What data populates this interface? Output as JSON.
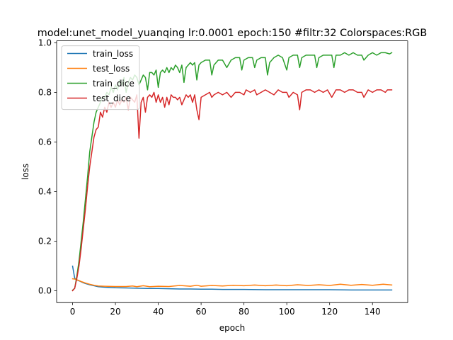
{
  "chart_data": {
    "type": "line",
    "title": "model:unet_model_yuanqing lr:0.0001 epoch:150 #filtr:32 Colorspaces:RGB",
    "xlabel": "epoch",
    "ylabel": "loss",
    "xlim": [
      -7.45,
      156.45
    ],
    "ylim": [
      -0.048,
      1.008
    ],
    "xticks": [
      0,
      20,
      40,
      60,
      80,
      100,
      120,
      140
    ],
    "yticks": [
      0.0,
      0.2,
      0.4,
      0.6,
      0.8,
      1.0
    ],
    "xtick_labels": [
      "0",
      "20",
      "40",
      "60",
      "80",
      "100",
      "120",
      "140"
    ],
    "ytick_labels": [
      "0.0",
      "0.2",
      "0.4",
      "0.6",
      "0.8",
      "1.0"
    ],
    "grid": false,
    "legend_position": "upper-left",
    "series": [
      {
        "name": "train_loss",
        "color": "#1f77b4",
        "points": [
          [
            0,
            0.099
          ],
          [
            1,
            0.05
          ],
          [
            2,
            0.043
          ],
          [
            3,
            0.04
          ],
          [
            4,
            0.036
          ],
          [
            5,
            0.032
          ],
          [
            6,
            0.029
          ],
          [
            8,
            0.024
          ],
          [
            10,
            0.02
          ],
          [
            12,
            0.016
          ],
          [
            15,
            0.014
          ],
          [
            20,
            0.012
          ],
          [
            25,
            0.011
          ],
          [
            30,
            0.01
          ],
          [
            35,
            0.009
          ],
          [
            40,
            0.009
          ],
          [
            45,
            0.008
          ],
          [
            50,
            0.007
          ],
          [
            55,
            0.007
          ],
          [
            60,
            0.006
          ],
          [
            65,
            0.006
          ],
          [
            70,
            0.005
          ],
          [
            80,
            0.005
          ],
          [
            90,
            0.004
          ],
          [
            100,
            0.004
          ],
          [
            110,
            0.004
          ],
          [
            120,
            0.004
          ],
          [
            130,
            0.003
          ],
          [
            140,
            0.003
          ],
          [
            149,
            0.003
          ]
        ]
      },
      {
        "name": "test_loss",
        "color": "#ff7f0e",
        "points": [
          [
            0,
            0.048
          ],
          [
            1,
            0.047
          ],
          [
            2,
            0.044
          ],
          [
            3,
            0.041
          ],
          [
            4,
            0.037
          ],
          [
            5,
            0.034
          ],
          [
            6,
            0.031
          ],
          [
            8,
            0.026
          ],
          [
            10,
            0.022
          ],
          [
            12,
            0.019
          ],
          [
            15,
            0.018
          ],
          [
            20,
            0.017
          ],
          [
            25,
            0.017
          ],
          [
            28,
            0.019
          ],
          [
            30,
            0.016
          ],
          [
            33,
            0.02
          ],
          [
            36,
            0.016
          ],
          [
            40,
            0.018
          ],
          [
            45,
            0.017
          ],
          [
            50,
            0.021
          ],
          [
            55,
            0.018
          ],
          [
            58,
            0.022
          ],
          [
            60,
            0.018
          ],
          [
            65,
            0.021
          ],
          [
            70,
            0.019
          ],
          [
            75,
            0.022
          ],
          [
            80,
            0.02
          ],
          [
            85,
            0.023
          ],
          [
            90,
            0.02
          ],
          [
            95,
            0.023
          ],
          [
            100,
            0.02
          ],
          [
            105,
            0.024
          ],
          [
            110,
            0.021
          ],
          [
            115,
            0.024
          ],
          [
            120,
            0.021
          ],
          [
            125,
            0.026
          ],
          [
            130,
            0.022
          ],
          [
            135,
            0.025
          ],
          [
            140,
            0.022
          ],
          [
            145,
            0.026
          ],
          [
            149,
            0.023
          ]
        ]
      },
      {
        "name": "train_dice",
        "color": "#2ca02c",
        "points": [
          [
            0,
            0.002
          ],
          [
            1,
            0.01
          ],
          [
            2,
            0.06
          ],
          [
            3,
            0.12
          ],
          [
            4,
            0.2
          ],
          [
            5,
            0.28
          ],
          [
            6,
            0.37
          ],
          [
            7,
            0.46
          ],
          [
            8,
            0.56
          ],
          [
            9,
            0.62
          ],
          [
            10,
            0.68
          ],
          [
            11,
            0.72
          ],
          [
            12,
            0.74
          ],
          [
            13,
            0.76
          ],
          [
            14,
            0.78
          ],
          [
            15,
            0.78
          ],
          [
            16,
            0.8
          ],
          [
            17,
            0.79
          ],
          [
            18,
            0.82
          ],
          [
            19,
            0.8
          ],
          [
            20,
            0.83
          ],
          [
            21,
            0.81
          ],
          [
            22,
            0.85
          ],
          [
            23,
            0.83
          ],
          [
            24,
            0.86
          ],
          [
            25,
            0.8
          ],
          [
            26,
            0.84
          ],
          [
            27,
            0.86
          ],
          [
            28,
            0.85
          ],
          [
            29,
            0.87
          ],
          [
            30,
            0.86
          ],
          [
            31,
            0.83
          ],
          [
            32,
            0.85
          ],
          [
            33,
            0.87
          ],
          [
            34,
            0.86
          ],
          [
            35,
            0.81
          ],
          [
            36,
            0.88
          ],
          [
            37,
            0.88
          ],
          [
            38,
            0.87
          ],
          [
            39,
            0.89
          ],
          [
            40,
            0.82
          ],
          [
            41,
            0.88
          ],
          [
            42,
            0.89
          ],
          [
            43,
            0.88
          ],
          [
            44,
            0.9
          ],
          [
            45,
            0.88
          ],
          [
            46,
            0.9
          ],
          [
            47,
            0.89
          ],
          [
            48,
            0.91
          ],
          [
            49,
            0.9
          ],
          [
            50,
            0.88
          ],
          [
            51,
            0.91
          ],
          [
            52,
            0.84
          ],
          [
            53,
            0.9
          ],
          [
            54,
            0.91
          ],
          [
            55,
            0.92
          ],
          [
            56,
            0.91
          ],
          [
            57,
            0.92
          ],
          [
            58,
            0.85
          ],
          [
            59,
            0.91
          ],
          [
            60,
            0.92
          ],
          [
            62,
            0.93
          ],
          [
            64,
            0.93
          ],
          [
            65,
            0.87
          ],
          [
            66,
            0.91
          ],
          [
            68,
            0.93
          ],
          [
            70,
            0.93
          ],
          [
            72,
            0.9
          ],
          [
            74,
            0.93
          ],
          [
            76,
            0.94
          ],
          [
            78,
            0.94
          ],
          [
            79,
            0.89
          ],
          [
            80,
            0.93
          ],
          [
            82,
            0.94
          ],
          [
            84,
            0.94
          ],
          [
            85,
            0.9
          ],
          [
            86,
            0.93
          ],
          [
            88,
            0.94
          ],
          [
            90,
            0.94
          ],
          [
            91,
            0.87
          ],
          [
            92,
            0.92
          ],
          [
            94,
            0.94
          ],
          [
            96,
            0.95
          ],
          [
            98,
            0.94
          ],
          [
            100,
            0.89
          ],
          [
            101,
            0.94
          ],
          [
            103,
            0.95
          ],
          [
            105,
            0.95
          ],
          [
            106,
            0.9
          ],
          [
            107,
            0.94
          ],
          [
            109,
            0.95
          ],
          [
            111,
            0.95
          ],
          [
            113,
            0.95
          ],
          [
            114,
            0.9
          ],
          [
            115,
            0.94
          ],
          [
            117,
            0.95
          ],
          [
            119,
            0.95
          ],
          [
            121,
            0.95
          ],
          [
            122,
            0.9
          ],
          [
            123,
            0.95
          ],
          [
            125,
            0.95
          ],
          [
            127,
            0.96
          ],
          [
            129,
            0.95
          ],
          [
            131,
            0.96
          ],
          [
            133,
            0.95
          ],
          [
            135,
            0.95
          ],
          [
            136,
            0.93
          ],
          [
            138,
            0.95
          ],
          [
            140,
            0.96
          ],
          [
            142,
            0.95
          ],
          [
            144,
            0.96
          ],
          [
            146,
            0.96
          ],
          [
            148,
            0.955
          ],
          [
            149,
            0.96
          ]
        ]
      },
      {
        "name": "test_dice",
        "color": "#d62728",
        "points": [
          [
            0,
            0.0
          ],
          [
            1,
            0.01
          ],
          [
            2,
            0.05
          ],
          [
            3,
            0.1
          ],
          [
            4,
            0.17
          ],
          [
            5,
            0.25
          ],
          [
            6,
            0.33
          ],
          [
            7,
            0.42
          ],
          [
            8,
            0.5
          ],
          [
            9,
            0.56
          ],
          [
            10,
            0.62
          ],
          [
            11,
            0.65
          ],
          [
            12,
            0.66
          ],
          [
            13,
            0.72
          ],
          [
            14,
            0.7
          ],
          [
            15,
            0.74
          ],
          [
            16,
            0.72
          ],
          [
            17,
            0.76
          ],
          [
            18,
            0.74
          ],
          [
            19,
            0.76
          ],
          [
            20,
            0.74
          ],
          [
            21,
            0.77
          ],
          [
            22,
            0.75
          ],
          [
            23,
            0.77
          ],
          [
            24,
            0.76
          ],
          [
            25,
            0.78
          ],
          [
            26,
            0.73
          ],
          [
            27,
            0.78
          ],
          [
            28,
            0.77
          ],
          [
            29,
            0.76
          ],
          [
            30,
            0.79
          ],
          [
            31,
            0.615
          ],
          [
            32,
            0.76
          ],
          [
            33,
            0.78
          ],
          [
            34,
            0.72
          ],
          [
            35,
            0.78
          ],
          [
            36,
            0.79
          ],
          [
            37,
            0.78
          ],
          [
            38,
            0.8
          ],
          [
            39,
            0.76
          ],
          [
            40,
            0.79
          ],
          [
            41,
            0.76
          ],
          [
            42,
            0.78
          ],
          [
            43,
            0.74
          ],
          [
            44,
            0.78
          ],
          [
            45,
            0.75
          ],
          [
            46,
            0.79
          ],
          [
            47,
            0.78
          ],
          [
            48,
            0.78
          ],
          [
            49,
            0.77
          ],
          [
            50,
            0.78
          ],
          [
            51,
            0.75
          ],
          [
            52,
            0.77
          ],
          [
            53,
            0.79
          ],
          [
            54,
            0.78
          ],
          [
            55,
            0.79
          ],
          [
            56,
            0.76
          ],
          [
            57,
            0.79
          ],
          [
            58,
            0.73
          ],
          [
            59,
            0.69
          ],
          [
            60,
            0.78
          ],
          [
            62,
            0.79
          ],
          [
            64,
            0.8
          ],
          [
            65,
            0.78
          ],
          [
            66,
            0.79
          ],
          [
            68,
            0.8
          ],
          [
            70,
            0.79
          ],
          [
            72,
            0.8
          ],
          [
            74,
            0.78
          ],
          [
            76,
            0.8
          ],
          [
            78,
            0.8
          ],
          [
            80,
            0.79
          ],
          [
            81,
            0.81
          ],
          [
            83,
            0.8
          ],
          [
            85,
            0.81
          ],
          [
            86,
            0.79
          ],
          [
            88,
            0.8
          ],
          [
            90,
            0.81
          ],
          [
            92,
            0.8
          ],
          [
            94,
            0.79
          ],
          [
            96,
            0.81
          ],
          [
            98,
            0.8
          ],
          [
            100,
            0.8
          ],
          [
            101,
            0.78
          ],
          [
            103,
            0.8
          ],
          [
            105,
            0.79
          ],
          [
            106,
            0.73
          ],
          [
            107,
            0.8
          ],
          [
            109,
            0.81
          ],
          [
            111,
            0.81
          ],
          [
            113,
            0.8
          ],
          [
            115,
            0.81
          ],
          [
            117,
            0.8
          ],
          [
            119,
            0.81
          ],
          [
            121,
            0.78
          ],
          [
            123,
            0.81
          ],
          [
            125,
            0.81
          ],
          [
            127,
            0.8
          ],
          [
            129,
            0.81
          ],
          [
            131,
            0.81
          ],
          [
            133,
            0.8
          ],
          [
            135,
            0.8
          ],
          [
            136,
            0.78
          ],
          [
            138,
            0.81
          ],
          [
            140,
            0.8
          ],
          [
            142,
            0.81
          ],
          [
            144,
            0.81
          ],
          [
            146,
            0.8
          ],
          [
            147,
            0.81
          ],
          [
            149,
            0.81
          ]
        ]
      }
    ]
  }
}
